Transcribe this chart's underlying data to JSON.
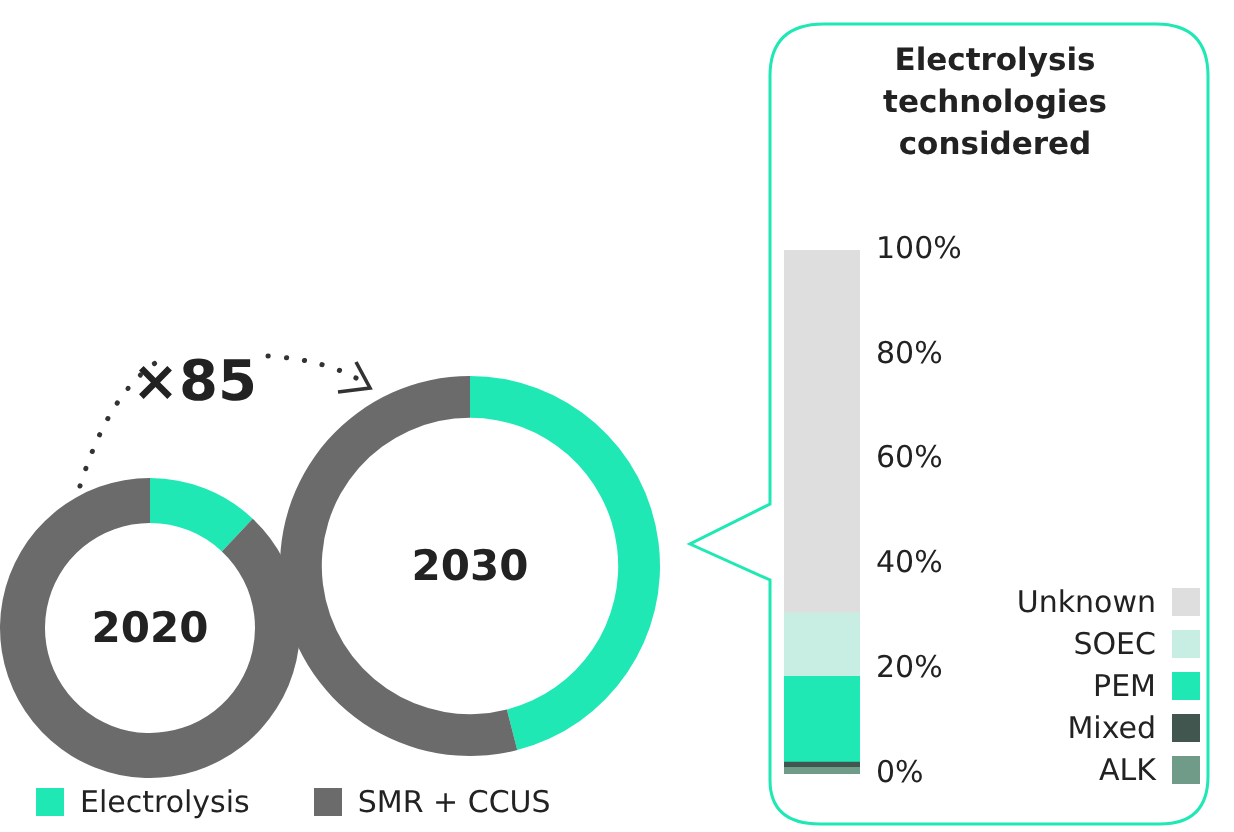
{
  "chart_data": [
    {
      "type": "donut",
      "categories": [
        "Electrolysis",
        "SMR + CCUS"
      ],
      "colors": [
        "#20e8b4",
        "#6b6b6b"
      ],
      "legend": "bottom",
      "annotations": [
        "×85"
      ],
      "series": [
        {
          "name": "2020",
          "values": [
            12,
            88
          ]
        },
        {
          "name": "2030",
          "values": [
            46,
            54
          ]
        }
      ]
    },
    {
      "type": "bar",
      "title": "Electrolysis technologies considered",
      "stacked": true,
      "categories": [
        null
      ],
      "ylim": [
        0,
        100
      ],
      "yticks": [
        {
          "value": 0,
          "label": "0%"
        },
        {
          "value": 20,
          "label": "20%"
        },
        {
          "value": 40,
          "label": "40%"
        },
        {
          "value": 60,
          "label": "60%"
        },
        {
          "value": 80,
          "label": "80%"
        },
        {
          "value": 100,
          "label": "100%"
        }
      ],
      "grid": false,
      "legend": "bottom right",
      "series": [
        {
          "name": "ALK",
          "color": "#6f9b88",
          "values": [
            1.2
          ]
        },
        {
          "name": "Mixed",
          "color": "#41564f",
          "values": [
            1
          ]
        },
        {
          "name": "PEM",
          "color": "#20e8b4",
          "values": [
            16.4
          ]
        },
        {
          "name": "SOEC",
          "color": "#c8ede2",
          "values": [
            12.1
          ]
        },
        {
          "name": "Unknown",
          "color": "#dedede",
          "values": [
            69.3
          ]
        }
      ]
    }
  ]
}
